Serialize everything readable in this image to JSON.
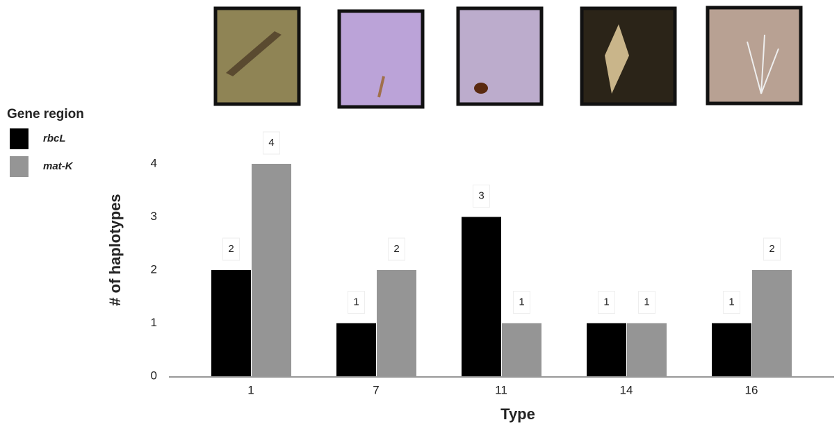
{
  "chart_data": {
    "type": "bar",
    "x_label": "Type",
    "y_label": "# of haplotypes",
    "legend_title": "Gene region",
    "categories": [
      "1",
      "7",
      "11",
      "14",
      "16"
    ],
    "series": [
      {
        "name": "rbcL",
        "color": "#000000",
        "values": [
          2,
          1,
          3,
          1,
          1
        ]
      },
      {
        "name": "mat-K",
        "color": "#959595",
        "values": [
          4,
          2,
          1,
          1,
          2
        ]
      }
    ],
    "ylim": [
      0,
      4
    ],
    "yticks": [
      0,
      1,
      2,
      3,
      4
    ],
    "grid": false,
    "legend": "left"
  }
}
